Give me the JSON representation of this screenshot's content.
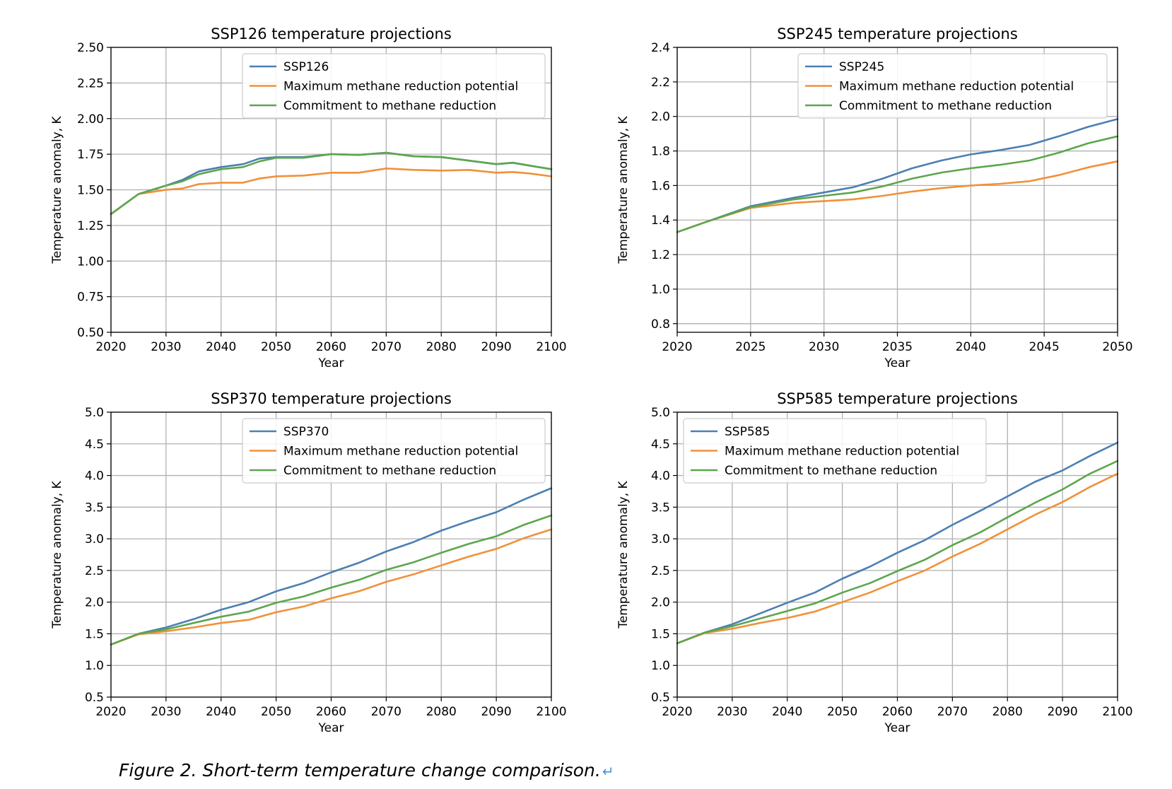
{
  "caption": "Figure 2. Short-term temperature change comparison.",
  "caption_mark": "↵",
  "colors": {
    "ssp": "#4c7fb3",
    "max": "#f0913a",
    "commit": "#5ca64d",
    "grid": "#b0b0b0"
  },
  "chart_data": [
    {
      "type": "line",
      "title": "SSP126 temperature projections",
      "xlabel": "Year",
      "ylabel": "Temperature anomaly, K",
      "xlim": [
        2020,
        2100
      ],
      "ylim": [
        0.5,
        2.5
      ],
      "xticks": [
        2020,
        2030,
        2040,
        2050,
        2060,
        2070,
        2080,
        2090,
        2100
      ],
      "yticks": [
        0.5,
        0.75,
        1.0,
        1.25,
        1.5,
        1.75,
        2.0,
        2.25,
        2.5
      ],
      "ytick_labels": [
        "0.50",
        "0.75",
        "1.00",
        "1.25",
        "1.50",
        "1.75",
        "2.00",
        "2.25",
        "2.50"
      ],
      "grid": true,
      "legend_position": "top-right",
      "series": [
        {
          "name": "SSP126",
          "color": "#4c7fb3",
          "x": [
            2020,
            2025,
            2030,
            2033,
            2036,
            2040,
            2044,
            2047,
            2050,
            2055,
            2060,
            2065,
            2070,
            2075,
            2080,
            2085,
            2090,
            2093,
            2096,
            2100
          ],
          "values": [
            1.33,
            1.47,
            1.53,
            1.57,
            1.63,
            1.66,
            1.68,
            1.72,
            1.73,
            1.73,
            1.75,
            1.745,
            1.76,
            1.735,
            1.73,
            1.705,
            1.68,
            1.69,
            1.67,
            1.645
          ]
        },
        {
          "name": "Maximum methane reduction potential",
          "color": "#f0913a",
          "x": [
            2020,
            2025,
            2030,
            2033,
            2036,
            2040,
            2044,
            2047,
            2050,
            2055,
            2060,
            2065,
            2070,
            2075,
            2080,
            2085,
            2090,
            2093,
            2096,
            2100
          ],
          "values": [
            1.33,
            1.47,
            1.5,
            1.51,
            1.54,
            1.55,
            1.55,
            1.58,
            1.595,
            1.6,
            1.62,
            1.62,
            1.65,
            1.64,
            1.635,
            1.64,
            1.62,
            1.625,
            1.615,
            1.595
          ]
        },
        {
          "name": "Commitment to methane reduction",
          "color": "#5ca64d",
          "x": [
            2020,
            2025,
            2030,
            2033,
            2036,
            2040,
            2044,
            2047,
            2050,
            2055,
            2060,
            2065,
            2070,
            2075,
            2080,
            2085,
            2090,
            2093,
            2096,
            2100
          ],
          "values": [
            1.33,
            1.47,
            1.53,
            1.56,
            1.61,
            1.645,
            1.66,
            1.7,
            1.725,
            1.725,
            1.75,
            1.745,
            1.76,
            1.735,
            1.73,
            1.705,
            1.68,
            1.69,
            1.67,
            1.645
          ]
        }
      ]
    },
    {
      "type": "line",
      "title": "SSP245 temperature projections",
      "xlabel": "Year",
      "ylabel": "Temperature anomaly, K",
      "xlim": [
        2020,
        2050
      ],
      "ylim": [
        0.75,
        2.4
      ],
      "xticks": [
        2020,
        2025,
        2030,
        2035,
        2040,
        2045,
        2050
      ],
      "yticks": [
        0.8,
        1.0,
        1.2,
        1.4,
        1.6,
        1.8,
        2.0,
        2.2,
        2.4
      ],
      "ytick_labels": [
        "0.8",
        "1.0",
        "1.2",
        "1.4",
        "1.6",
        "1.8",
        "2.0",
        "2.2",
        "2.4"
      ],
      "grid": true,
      "legend_position": "top-right",
      "series": [
        {
          "name": "SSP245",
          "color": "#4c7fb3",
          "x": [
            2020,
            2022,
            2025,
            2028,
            2030,
            2032,
            2034,
            2036,
            2038,
            2040,
            2042,
            2044,
            2046,
            2048,
            2050
          ],
          "values": [
            1.33,
            1.39,
            1.48,
            1.53,
            1.56,
            1.59,
            1.64,
            1.7,
            1.745,
            1.78,
            1.805,
            1.835,
            1.885,
            1.94,
            1.985
          ]
        },
        {
          "name": "Maximum methane reduction potential",
          "color": "#f0913a",
          "x": [
            2020,
            2022,
            2025,
            2028,
            2030,
            2032,
            2034,
            2036,
            2038,
            2040,
            2042,
            2044,
            2046,
            2048,
            2050
          ],
          "values": [
            1.33,
            1.39,
            1.47,
            1.5,
            1.51,
            1.52,
            1.54,
            1.565,
            1.585,
            1.6,
            1.61,
            1.625,
            1.66,
            1.705,
            1.74
          ]
        },
        {
          "name": "Commitment to methane reduction",
          "color": "#5ca64d",
          "x": [
            2020,
            2022,
            2025,
            2028,
            2030,
            2032,
            2034,
            2036,
            2038,
            2040,
            2042,
            2044,
            2046,
            2048,
            2050
          ],
          "values": [
            1.33,
            1.39,
            1.475,
            1.52,
            1.54,
            1.56,
            1.595,
            1.64,
            1.675,
            1.7,
            1.72,
            1.745,
            1.79,
            1.845,
            1.885
          ]
        }
      ]
    },
    {
      "type": "line",
      "title": "SSP370 temperature projections",
      "xlabel": "Year",
      "ylabel": "Temperature anomaly, K",
      "xlim": [
        2020,
        2100
      ],
      "ylim": [
        0.5,
        5.0
      ],
      "xticks": [
        2020,
        2030,
        2040,
        2050,
        2060,
        2070,
        2080,
        2090,
        2100
      ],
      "yticks": [
        0.5,
        1.0,
        1.5,
        2.0,
        2.5,
        3.0,
        3.5,
        4.0,
        4.5,
        5.0
      ],
      "ytick_labels": [
        "0.5",
        "1.0",
        "1.5",
        "2.0",
        "2.5",
        "3.0",
        "3.5",
        "4.0",
        "4.5",
        "5.0"
      ],
      "grid": true,
      "legend_position": "top-right",
      "series": [
        {
          "name": "SSP370",
          "color": "#4c7fb3",
          "x": [
            2020,
            2025,
            2030,
            2035,
            2040,
            2045,
            2050,
            2055,
            2060,
            2065,
            2070,
            2075,
            2080,
            2085,
            2090,
            2095,
            2100
          ],
          "values": [
            1.33,
            1.5,
            1.6,
            1.73,
            1.88,
            2.0,
            2.17,
            2.3,
            2.47,
            2.62,
            2.8,
            2.95,
            3.13,
            3.28,
            3.42,
            3.62,
            3.8
          ]
        },
        {
          "name": "Maximum methane reduction potential",
          "color": "#f0913a",
          "x": [
            2020,
            2025,
            2030,
            2035,
            2040,
            2045,
            2050,
            2055,
            2060,
            2065,
            2070,
            2075,
            2080,
            2085,
            2090,
            2095,
            2100
          ],
          "values": [
            1.33,
            1.49,
            1.54,
            1.6,
            1.67,
            1.72,
            1.84,
            1.93,
            2.06,
            2.17,
            2.32,
            2.44,
            2.58,
            2.72,
            2.84,
            3.01,
            3.15
          ]
        },
        {
          "name": "Commitment to methane reduction",
          "color": "#5ca64d",
          "x": [
            2020,
            2025,
            2030,
            2035,
            2040,
            2045,
            2050,
            2055,
            2060,
            2065,
            2070,
            2075,
            2080,
            2085,
            2090,
            2095,
            2100
          ],
          "values": [
            1.33,
            1.5,
            1.57,
            1.67,
            1.77,
            1.85,
            1.99,
            2.09,
            2.23,
            2.35,
            2.51,
            2.63,
            2.78,
            2.92,
            3.04,
            3.22,
            3.37
          ]
        }
      ]
    },
    {
      "type": "line",
      "title": "SSP585 temperature projections",
      "xlabel": "Year",
      "ylabel": "Temperature anomaly, K",
      "xlim": [
        2020,
        2100
      ],
      "ylim": [
        0.5,
        5.0
      ],
      "xticks": [
        2020,
        2030,
        2040,
        2050,
        2060,
        2070,
        2080,
        2090,
        2100
      ],
      "yticks": [
        0.5,
        1.0,
        1.5,
        2.0,
        2.5,
        3.0,
        3.5,
        4.0,
        4.5,
        5.0
      ],
      "ytick_labels": [
        "0.5",
        "1.0",
        "1.5",
        "2.0",
        "2.5",
        "3.0",
        "3.5",
        "4.0",
        "4.5",
        "5.0"
      ],
      "grid": true,
      "legend_position": "top-left",
      "series": [
        {
          "name": "SSP585",
          "color": "#4c7fb3",
          "x": [
            2020,
            2025,
            2030,
            2035,
            2040,
            2045,
            2050,
            2055,
            2060,
            2065,
            2070,
            2075,
            2080,
            2085,
            2090,
            2095,
            2100
          ],
          "values": [
            1.35,
            1.52,
            1.65,
            1.82,
            1.99,
            2.15,
            2.37,
            2.56,
            2.78,
            2.98,
            3.22,
            3.44,
            3.67,
            3.9,
            4.08,
            4.31,
            4.52
          ]
        },
        {
          "name": "Maximum methane reduction potential",
          "color": "#f0913a",
          "x": [
            2020,
            2025,
            2030,
            2035,
            2040,
            2045,
            2050,
            2055,
            2060,
            2065,
            2070,
            2075,
            2080,
            2085,
            2090,
            2095,
            2100
          ],
          "values": [
            1.35,
            1.51,
            1.58,
            1.67,
            1.75,
            1.85,
            2.0,
            2.15,
            2.33,
            2.5,
            2.72,
            2.92,
            3.15,
            3.38,
            3.58,
            3.82,
            4.03
          ]
        },
        {
          "name": "Commitment to methane reduction",
          "color": "#5ca64d",
          "x": [
            2020,
            2025,
            2030,
            2035,
            2040,
            2045,
            2050,
            2055,
            2060,
            2065,
            2070,
            2075,
            2080,
            2085,
            2090,
            2095,
            2100
          ],
          "values": [
            1.35,
            1.52,
            1.62,
            1.74,
            1.86,
            1.98,
            2.15,
            2.3,
            2.49,
            2.67,
            2.9,
            3.1,
            3.34,
            3.57,
            3.78,
            4.03,
            4.23
          ]
        }
      ]
    }
  ]
}
